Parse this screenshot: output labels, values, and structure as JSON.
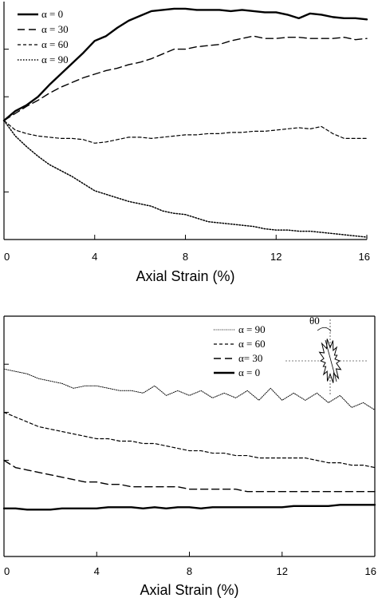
{
  "chart_data": [
    {
      "type": "line",
      "title": "",
      "xlabel": "Axial Strain (%)",
      "ylabel": "",
      "xlim": [
        0,
        16
      ],
      "ylim": [
        -1,
        1
      ],
      "x_ticks": [
        "0",
        "4",
        "8",
        "12",
        "16"
      ],
      "x_tick_values": [
        0,
        4,
        8,
        12,
        16
      ],
      "y_tick_values": [
        -0.6,
        0.2,
        0.6
      ],
      "grid": false,
      "legend_position": "top-left",
      "legend_marker_labels": [
        "α = 0",
        "α = 30",
        "α = 60",
        "α = 90"
      ],
      "series": [
        {
          "name": "α = 0",
          "style": "solid-thick",
          "x": [
            0,
            0.5,
            1,
            1.5,
            2,
            2.5,
            3,
            3.5,
            4,
            4.5,
            5,
            5.5,
            6,
            6.5,
            7,
            7.5,
            8,
            8.5,
            9,
            9.5,
            10,
            10.5,
            11,
            11.5,
            12,
            12.5,
            13,
            13.5,
            14,
            14.5,
            15,
            15.5,
            16
          ],
          "values": [
            0.0,
            0.08,
            0.13,
            0.2,
            0.3,
            0.39,
            0.48,
            0.57,
            0.67,
            0.71,
            0.78,
            0.84,
            0.88,
            0.92,
            0.93,
            0.94,
            0.94,
            0.93,
            0.93,
            0.93,
            0.92,
            0.93,
            0.92,
            0.91,
            0.91,
            0.89,
            0.86,
            0.9,
            0.89,
            0.87,
            0.86,
            0.86,
            0.85
          ]
        },
        {
          "name": "α = 30",
          "style": "long-dash",
          "x": [
            0,
            0.5,
            1,
            1.5,
            2,
            2.5,
            3,
            3.5,
            4,
            4.5,
            5,
            5.5,
            6,
            6.5,
            7,
            7.5,
            8,
            8.5,
            9,
            9.5,
            10,
            10.5,
            11,
            11.5,
            12,
            12.5,
            13,
            13.5,
            14,
            14.5,
            15,
            15.5,
            16
          ],
          "values": [
            0.0,
            0.06,
            0.12,
            0.17,
            0.23,
            0.28,
            0.32,
            0.36,
            0.39,
            0.42,
            0.44,
            0.47,
            0.49,
            0.52,
            0.56,
            0.6,
            0.6,
            0.62,
            0.63,
            0.64,
            0.67,
            0.69,
            0.71,
            0.69,
            0.69,
            0.7,
            0.7,
            0.69,
            0.69,
            0.69,
            0.7,
            0.68,
            0.69
          ]
        },
        {
          "name": "α = 60",
          "style": "short-dash",
          "x": [
            0,
            0.5,
            1,
            1.5,
            2,
            2.5,
            3,
            3.5,
            4,
            4.5,
            5,
            5.5,
            6,
            6.5,
            7,
            7.5,
            8,
            8.5,
            9,
            9.5,
            10,
            10.5,
            11,
            11.5,
            12,
            12.5,
            13,
            13.5,
            14,
            14.5,
            15,
            15.5,
            16
          ],
          "values": [
            0.0,
            -0.08,
            -0.11,
            -0.13,
            -0.14,
            -0.15,
            -0.15,
            -0.16,
            -0.19,
            -0.18,
            -0.16,
            -0.14,
            -0.14,
            -0.15,
            -0.14,
            -0.13,
            -0.12,
            -0.12,
            -0.11,
            -0.11,
            -0.1,
            -0.1,
            -0.09,
            -0.09,
            -0.08,
            -0.07,
            -0.06,
            -0.07,
            -0.05,
            -0.11,
            -0.15,
            -0.15,
            -0.15
          ]
        },
        {
          "name": "α = 90",
          "style": "dotted",
          "x": [
            0,
            0.5,
            1,
            1.5,
            2,
            2.5,
            3,
            3.5,
            4,
            4.5,
            5,
            5.5,
            6,
            6.5,
            7,
            7.5,
            8,
            8.5,
            9,
            9.5,
            10,
            10.5,
            11,
            11.5,
            12,
            12.5,
            13,
            13.5,
            14,
            14.5,
            15,
            15.5,
            16
          ],
          "values": [
            0.0,
            -0.13,
            -0.22,
            -0.3,
            -0.37,
            -0.42,
            -0.47,
            -0.53,
            -0.59,
            -0.62,
            -0.65,
            -0.68,
            -0.7,
            -0.72,
            -0.76,
            -0.78,
            -0.79,
            -0.82,
            -0.85,
            -0.86,
            -0.87,
            -0.88,
            -0.89,
            -0.91,
            -0.92,
            -0.92,
            -0.93,
            -0.93,
            -0.94,
            -0.95,
            -0.96,
            -0.97,
            -0.98
          ]
        }
      ]
    },
    {
      "type": "line",
      "title": "",
      "xlabel": "Axial Strain (%)",
      "ylabel": "",
      "xlim": [
        0,
        16
      ],
      "ylim": [
        0,
        1
      ],
      "x_ticks": [
        "0",
        "4",
        "8",
        "12",
        "16"
      ],
      "x_tick_values": [
        0,
        4,
        8,
        12,
        16
      ],
      "y_tick_values": [
        0.2,
        0.4,
        0.6,
        0.8
      ],
      "grid": false,
      "legend_position": "top-right",
      "legend_marker_labels": [
        "α = 90",
        "α = 60",
        "α= 30",
        "α = 0"
      ],
      "inset_label": "θ0",
      "series": [
        {
          "name": "α = 90",
          "style": "wavy",
          "x": [
            0,
            0.5,
            1,
            1.5,
            2,
            2.5,
            3,
            3.5,
            4,
            4.5,
            5,
            5.5,
            6,
            6.5,
            7,
            7.5,
            8,
            8.5,
            9,
            9.5,
            10,
            10.5,
            11,
            11.5,
            12,
            12.5,
            13,
            13.5,
            14,
            14.5,
            15,
            15.5,
            16
          ],
          "values": [
            0.78,
            0.77,
            0.76,
            0.74,
            0.73,
            0.72,
            0.7,
            0.71,
            0.71,
            0.7,
            0.69,
            0.69,
            0.68,
            0.71,
            0.67,
            0.69,
            0.67,
            0.69,
            0.66,
            0.68,
            0.66,
            0.69,
            0.65,
            0.7,
            0.65,
            0.68,
            0.65,
            0.68,
            0.64,
            0.67,
            0.62,
            0.64,
            0.61
          ]
        },
        {
          "name": "α = 60",
          "style": "short-dash",
          "x": [
            0,
            0.5,
            1,
            1.5,
            2,
            2.5,
            3,
            3.5,
            4,
            4.5,
            5,
            5.5,
            6,
            6.5,
            7,
            7.5,
            8,
            8.5,
            9,
            9.5,
            10,
            10.5,
            11,
            11.5,
            12,
            12.5,
            13,
            13.5,
            14,
            14.5,
            15,
            15.5,
            16
          ],
          "values": [
            0.6,
            0.58,
            0.56,
            0.54,
            0.53,
            0.52,
            0.51,
            0.5,
            0.49,
            0.49,
            0.48,
            0.48,
            0.47,
            0.47,
            0.46,
            0.45,
            0.44,
            0.44,
            0.43,
            0.43,
            0.42,
            0.42,
            0.41,
            0.41,
            0.41,
            0.41,
            0.41,
            0.4,
            0.39,
            0.39,
            0.38,
            0.38,
            0.37
          ]
        },
        {
          "name": "α= 30",
          "style": "long-dash",
          "x": [
            0,
            0.5,
            1,
            1.5,
            2,
            2.5,
            3,
            3.5,
            4,
            4.5,
            5,
            5.5,
            6,
            6.5,
            7,
            7.5,
            8,
            8.5,
            9,
            9.5,
            10,
            10.5,
            11,
            11.5,
            12,
            12.5,
            13,
            13.5,
            14,
            14.5,
            15,
            15.5,
            16
          ],
          "values": [
            0.4,
            0.37,
            0.36,
            0.35,
            0.34,
            0.33,
            0.32,
            0.31,
            0.31,
            0.3,
            0.3,
            0.29,
            0.29,
            0.29,
            0.29,
            0.29,
            0.28,
            0.28,
            0.28,
            0.28,
            0.28,
            0.27,
            0.27,
            0.27,
            0.27,
            0.27,
            0.27,
            0.27,
            0.27,
            0.27,
            0.27,
            0.27,
            0.27
          ]
        },
        {
          "name": "α = 0",
          "style": "solid-thick",
          "x": [
            0,
            0.5,
            1,
            1.5,
            2,
            2.5,
            3,
            3.5,
            4,
            4.5,
            5,
            5.5,
            6,
            6.5,
            7,
            7.5,
            8,
            8.5,
            9,
            9.5,
            10,
            10.5,
            11,
            11.5,
            12,
            12.5,
            13,
            13.5,
            14,
            14.5,
            15,
            15.5,
            16
          ],
          "values": [
            0.2,
            0.2,
            0.195,
            0.195,
            0.195,
            0.2,
            0.2,
            0.2,
            0.2,
            0.205,
            0.205,
            0.205,
            0.2,
            0.205,
            0.2,
            0.205,
            0.205,
            0.2,
            0.205,
            0.205,
            0.205,
            0.205,
            0.205,
            0.205,
            0.205,
            0.21,
            0.21,
            0.21,
            0.21,
            0.215,
            0.215,
            0.215,
            0.215
          ]
        }
      ]
    }
  ]
}
